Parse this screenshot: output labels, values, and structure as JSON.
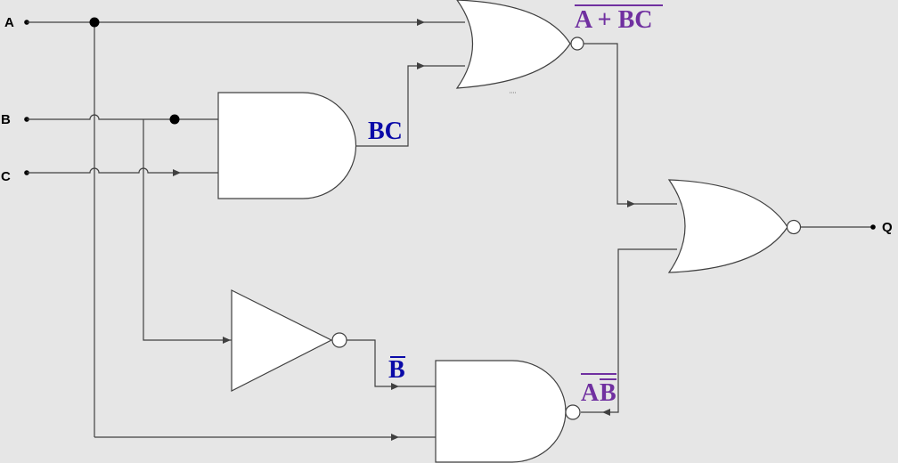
{
  "diagram": {
    "inputs": {
      "a": "A",
      "b": "B",
      "c": "C"
    },
    "output": "Q",
    "labels": {
      "bc": "BC",
      "not_b": "B",
      "nor_out": "A + BC",
      "nand_a": "A",
      "nand_b": "B"
    },
    "colors": {
      "blue_label": "#0a0aa8",
      "purple_label": "#7030a0",
      "background": "#e6e6e6",
      "gate_fill": "#ffffff",
      "wire": "#404040"
    }
  }
}
